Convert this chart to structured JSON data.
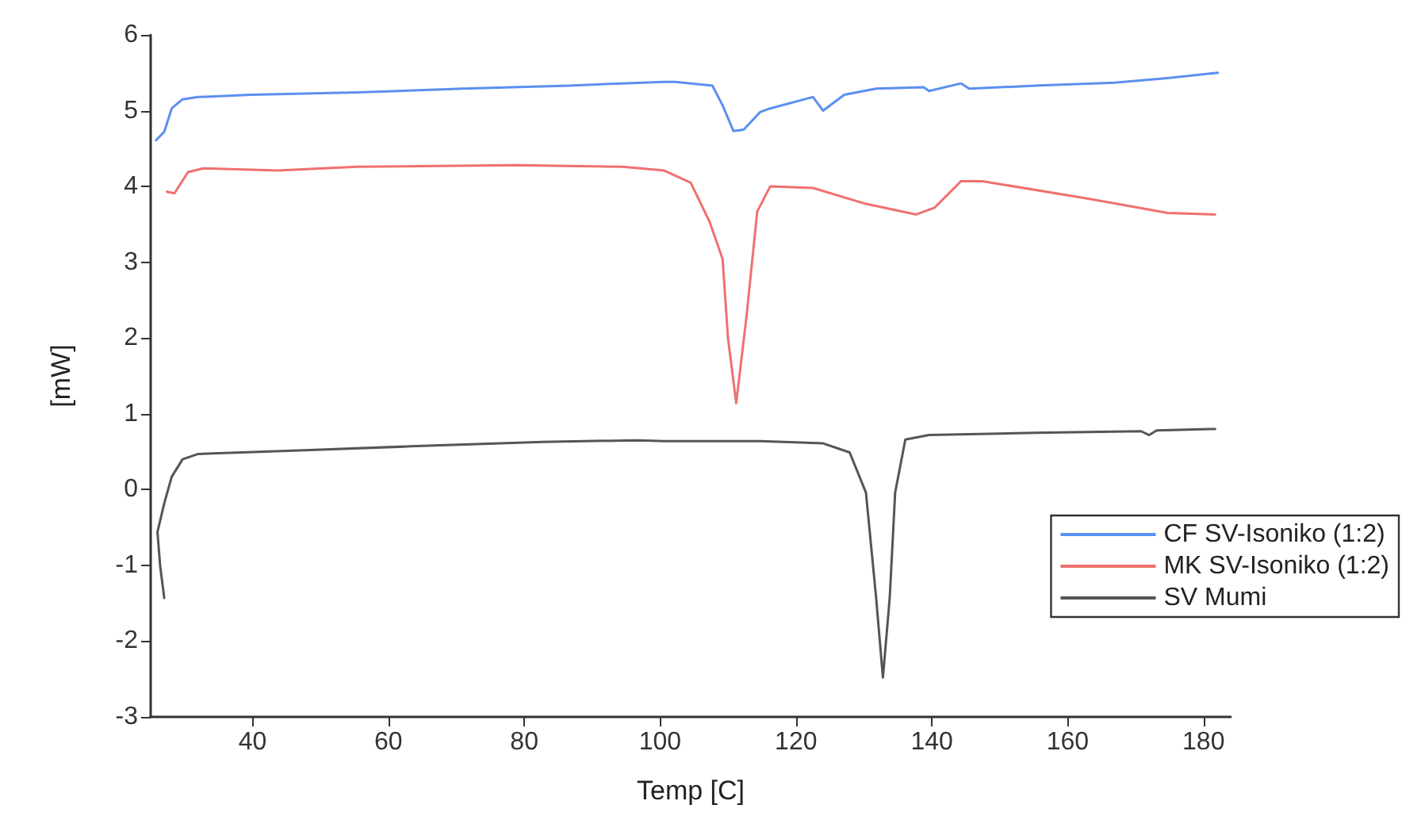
{
  "chart_data": {
    "type": "line",
    "xlabel": "Temp [C]",
    "ylabel": "[mW]",
    "xlim": [
      25,
      184
    ],
    "xticks": [
      40,
      60,
      80,
      100,
      120,
      140,
      160,
      180
    ],
    "ylim": [
      -3,
      6
    ],
    "yticks": [
      -3,
      -2,
      -1,
      0,
      1,
      2,
      3,
      4,
      5,
      6
    ],
    "grid": false,
    "legend": "right",
    "marker": "none",
    "line_style": "solid",
    "series": [
      {
        "name": "CF SV-Isoniko (1:2)",
        "color": "#5b8ff0",
        "x": [
          25.8,
          27,
          28.1,
          29.7,
          32,
          39.8,
          55.4,
          71,
          86.6,
          94.4,
          100.6,
          102.2,
          107.7,
          109.2,
          110.8,
          112.3,
          114.7,
          116.2,
          122.5,
          124,
          127.1,
          131.8,
          138.8,
          139.6,
          144.3,
          145.5,
          155.2,
          166.9,
          174.7,
          182.1
        ],
        "values": [
          4.61,
          4.72,
          5.03,
          5.15,
          5.18,
          5.21,
          5.24,
          5.29,
          5.33,
          5.36,
          5.38,
          5.38,
          5.33,
          5.07,
          4.73,
          4.75,
          4.98,
          5.03,
          5.18,
          5.0,
          5.21,
          5.29,
          5.31,
          5.26,
          5.36,
          5.29,
          5.33,
          5.37,
          5.43,
          5.5
        ]
      },
      {
        "name": "MK SV-Isoniko (1:2)",
        "color": "#f07070",
        "x": [
          27.4,
          28.5,
          30.5,
          32.8,
          43.7,
          55.4,
          78.8,
          94.4,
          100.6,
          104.5,
          107.3,
          109.2,
          110,
          111.2,
          112.7,
          114.3,
          116.2,
          122.5,
          130.3,
          137.7,
          140.4,
          144.3,
          147.4,
          163,
          174.7,
          181.7
        ],
        "values": [
          3.93,
          3.91,
          4.19,
          4.24,
          4.21,
          4.26,
          4.28,
          4.26,
          4.21,
          4.05,
          3.53,
          3.04,
          1.99,
          1.14,
          2.27,
          3.67,
          4.0,
          3.98,
          3.77,
          3.63,
          3.72,
          4.07,
          4.07,
          3.84,
          3.65,
          3.63
        ]
      },
      {
        "name": "SV Mumi",
        "color": "#555555",
        "x": [
          27,
          26.4,
          26,
          27,
          28.1,
          29.7,
          32,
          47.6,
          63.2,
          82.7,
          96.7,
          100.6,
          114.7,
          124,
          127.9,
          130.3,
          131.8,
          132.8,
          133.8,
          134.6,
          136.1,
          139.6,
          155.2,
          170.8,
          172,
          173.1,
          181.7
        ],
        "values": [
          -1.43,
          -1.01,
          -0.56,
          -0.18,
          0.17,
          0.4,
          0.47,
          0.52,
          0.57,
          0.63,
          0.65,
          0.64,
          0.64,
          0.61,
          0.49,
          -0.04,
          -1.43,
          -2.48,
          -1.43,
          -0.04,
          0.66,
          0.72,
          0.75,
          0.77,
          0.72,
          0.78,
          0.8
        ]
      }
    ]
  }
}
